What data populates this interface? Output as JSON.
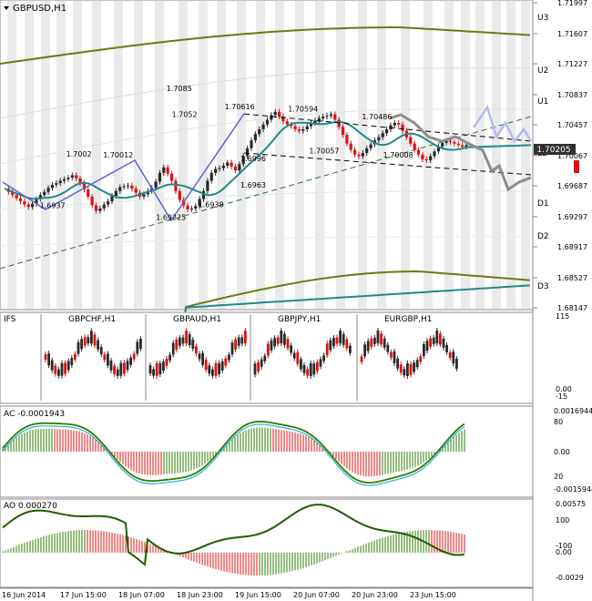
{
  "window": {
    "symbol_title": "GBPUSD,H1",
    "current_price": "1.70205"
  },
  "colors": {
    "up": "#2a2a2a",
    "down": "#e01010",
    "ma_teal": "#1f8a8a",
    "band_olive": "#6b7a10",
    "ac_green": "#2e7d00",
    "ac_cyan": "#2ab5d6",
    "ao_line": "#1a5e00",
    "hist_green": "#2e7d00",
    "hist_red": "#e01010",
    "projection_gray": "#8c8c8c",
    "projection_lavender": "#b8b8f0",
    "zigzag": "#6060e0",
    "vertical_stripes": "#d8d8d8",
    "right_bar": "#e01010"
  },
  "chart_data": [
    {
      "type": "candlestick",
      "title": "GBPUSD,H1",
      "timeframe": "H1",
      "ylim": [
        1.68147,
        1.71997
      ],
      "price_ticks": [
        "1.71997",
        "1.71607",
        "1.71227",
        "1.70837",
        "1.70457",
        "1.70067",
        "1.69687",
        "1.69297",
        "1.68917",
        "1.68527",
        "1.68147"
      ],
      "level_labels": [
        "U3",
        "U2",
        "U1",
        "LB",
        "D1",
        "D2",
        "D3"
      ],
      "current_price": 1.70205,
      "annotations": [
        {
          "text": "1.7002",
          "x": 0.12,
          "y": 1.7002
        },
        {
          "text": "1.70012",
          "x": 0.19,
          "y": 1.7001
        },
        {
          "text": "1.6937",
          "x": 0.07,
          "y": 1.6937
        },
        {
          "text": "1.7085",
          "x": 0.31,
          "y": 1.7085
        },
        {
          "text": "1.7052",
          "x": 0.32,
          "y": 1.7052
        },
        {
          "text": "1.70616",
          "x": 0.42,
          "y": 1.7062
        },
        {
          "text": "1.70594",
          "x": 0.54,
          "y": 1.7059
        },
        {
          "text": "1.70486",
          "x": 0.68,
          "y": 1.7049
        },
        {
          "text": "1.6996",
          "x": 0.45,
          "y": 1.6996
        },
        {
          "text": "1.6963",
          "x": 0.45,
          "y": 1.6963
        },
        {
          "text": "1.6938",
          "x": 0.37,
          "y": 1.6938
        },
        {
          "text": "1.69225",
          "x": 0.29,
          "y": 1.6922
        },
        {
          "text": "1.70057",
          "x": 0.58,
          "y": 1.7006
        },
        {
          "text": "1.70008",
          "x": 0.72,
          "y": 1.7001
        }
      ],
      "price_path": [
        1.6965,
        1.6961,
        1.6957,
        1.6953,
        1.6949,
        1.6945,
        1.6942,
        1.6946,
        1.6952,
        1.6957,
        1.6961,
        1.6966,
        1.697,
        1.6972,
        1.6975,
        1.6977,
        1.6979,
        1.6982,
        1.6978,
        1.6972,
        1.6964,
        1.6955,
        1.6944,
        1.6937,
        1.694,
        1.6945,
        1.6949,
        1.6956,
        1.6962,
        1.6967,
        1.6968,
        1.6969,
        1.6965,
        1.696,
        1.6955,
        1.6958,
        1.6962,
        1.6966,
        1.6974,
        1.6985,
        1.6992,
        1.6984,
        1.6975,
        1.6962,
        1.6951,
        1.6944,
        1.6939,
        1.694,
        1.6943,
        1.6952,
        1.6962,
        1.6975,
        1.6985,
        1.699,
        1.6991,
        1.6994,
        1.6998,
        1.6993,
        1.6988,
        1.6996,
        1.7006,
        1.7016,
        1.7026,
        1.7034,
        1.704,
        1.7046,
        1.7052,
        1.7058,
        1.7062,
        1.7056,
        1.705,
        1.7046,
        1.7044,
        1.704,
        1.7038,
        1.704,
        1.7044,
        1.7048,
        1.7051,
        1.7054,
        1.7056,
        1.7057,
        1.7059,
        1.7052,
        1.7043,
        1.7033,
        1.7022,
        1.7014,
        1.7008,
        1.7006,
        1.701,
        1.7016,
        1.7021,
        1.7026,
        1.703,
        1.7035,
        1.704,
        1.7045,
        1.7048,
        1.7046,
        1.7038,
        1.703,
        1.7022,
        1.7014,
        1.7008,
        1.7002,
        1.7001,
        1.7006,
        1.7012,
        1.7018,
        1.7023,
        1.7025,
        1.7024,
        1.7022,
        1.702,
        1.7018,
        1.702
      ]
    },
    {
      "type": "candlestick",
      "title": "IFS",
      "panels": [
        "GBPCHF,H1",
        "GBPAUD,H1",
        "GBPJPY,H1",
        "EURGBP,H1"
      ],
      "ylim": [
        -15,
        115
      ],
      "tick_labels": [
        "115",
        "0.00",
        "-15"
      ]
    },
    {
      "type": "line",
      "title": "AC -0.0001943",
      "tick_labels": [
        "0.0016944",
        "80",
        "0.00",
        "20",
        "-0.0015944"
      ]
    },
    {
      "type": "line",
      "title": "AO 0.000270",
      "tick_labels": [
        "0.00575",
        "100",
        "0.00",
        "-100",
        "-0.0029"
      ]
    }
  ],
  "time_labels": [
    "16 Jun 2014",
    "17 Jun 15:00",
    "18 Jun 07:00",
    "18 Jun 23:00",
    "19 Jun 15:00",
    "20 Jun 07:00",
    "20 Jun 23:00",
    "23 Jun 15:00"
  ]
}
